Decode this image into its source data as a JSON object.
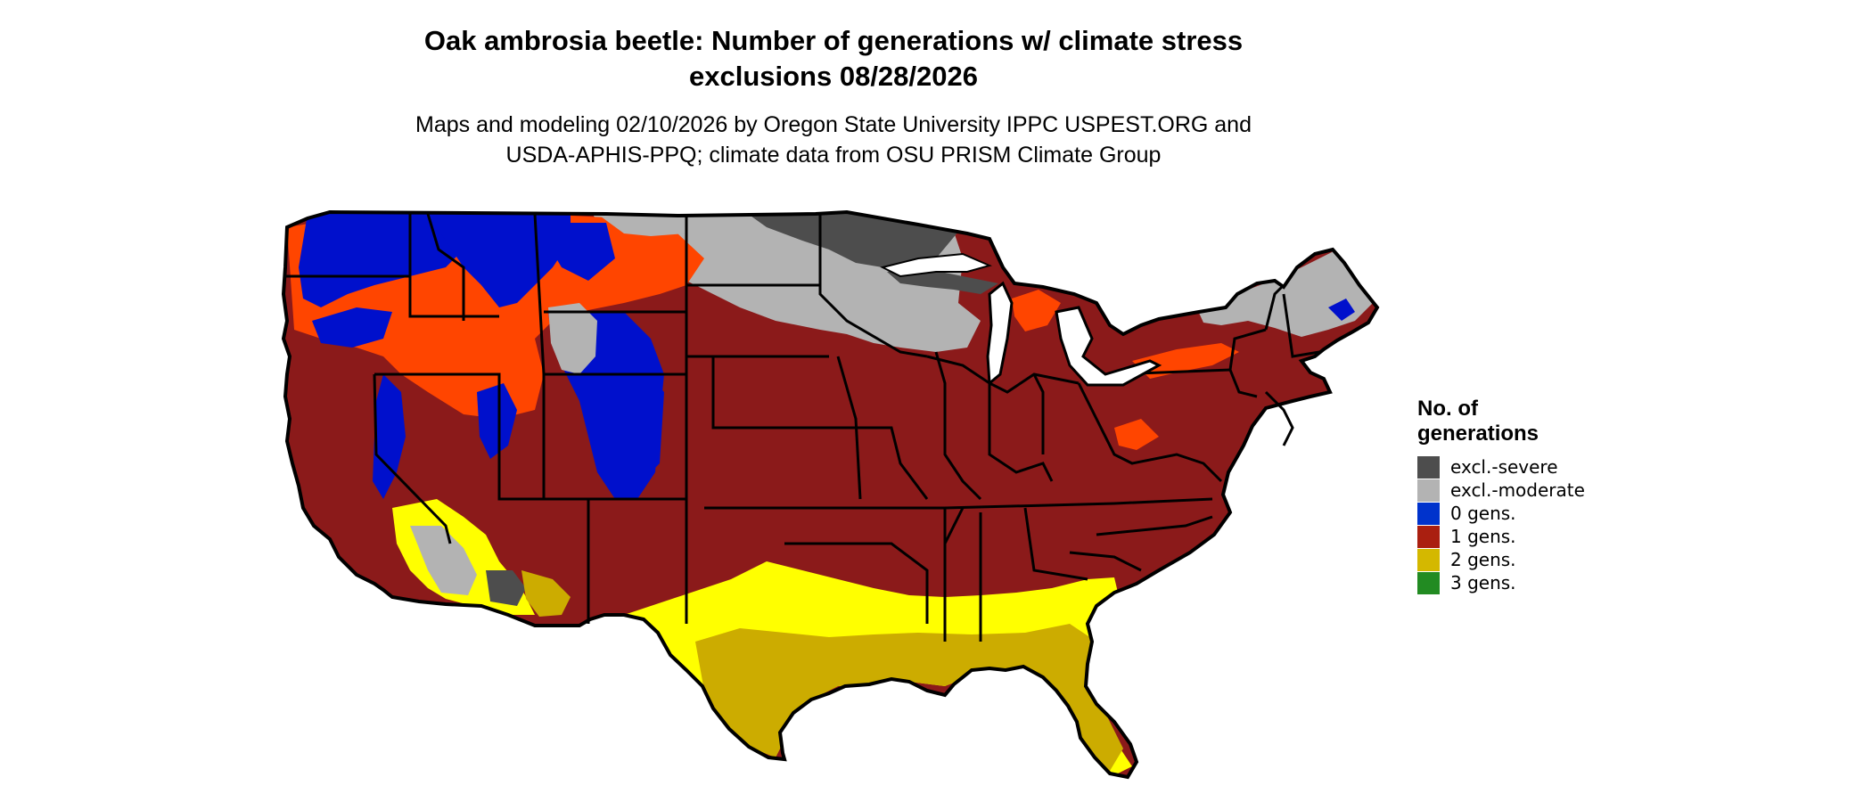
{
  "title_line1": "Oak ambrosia beetle: Number of generations w/ climate stress",
  "title_line2": "exclusions 08/28/2026",
  "subtitle_line1": "Maps and modeling 02/10/2026 by Oregon State University IPPC USPEST.ORG and",
  "subtitle_line2": "USDA-APHIS-PPQ; climate data from OSU PRISM Climate Group",
  "legend": {
    "title_line1": "No. of",
    "title_line2": "generations",
    "items": [
      {
        "label": "excl.-severe",
        "color": "#4d4d4d"
      },
      {
        "label": "excl.-moderate",
        "color": "#b3b3b3"
      },
      {
        "label": "0 gens.",
        "color": "#0033cc"
      },
      {
        "label": "1 gens.",
        "color": "#aa1f10"
      },
      {
        "label": "2 gens.",
        "color": "#d4b800"
      },
      {
        "label": "3 gens.",
        "color": "#228b22"
      }
    ]
  },
  "colors": {
    "map_base": "#8b1a1a",
    "orange": "#ff4500",
    "yellow_bright": "#ffff00",
    "yellow_dark": "#ccac00"
  }
}
